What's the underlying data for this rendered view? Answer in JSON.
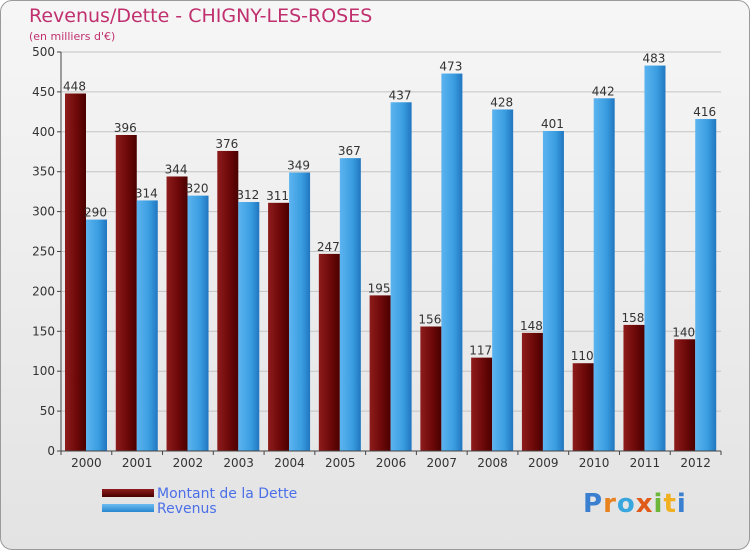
{
  "chart_data": {
    "type": "bar",
    "title": "Revenus/Dette - CHIGNY-LES-ROSES",
    "subtitle": "(en milliers d'€)",
    "xlabel": "",
    "ylabel": "",
    "ylim": [
      0,
      500
    ],
    "yticks": [
      0,
      50,
      100,
      150,
      200,
      250,
      300,
      350,
      400,
      450,
      500
    ],
    "grid": true,
    "legend_position": "bottom-left",
    "categories": [
      "2000",
      "2001",
      "2002",
      "2003",
      "2004",
      "2005",
      "2006",
      "2007",
      "2008",
      "2009",
      "2010",
      "2011",
      "2012"
    ],
    "series": [
      {
        "name": "Montant de la Dette",
        "color": "#7a0a0a",
        "values": [
          448,
          396,
          344,
          376,
          311,
          247,
          195,
          156,
          117,
          148,
          110,
          158,
          140
        ]
      },
      {
        "name": "Revenus",
        "color": "#3a9de0",
        "values": [
          290,
          314,
          320,
          312,
          349,
          367,
          437,
          473,
          428,
          401,
          442,
          483,
          416
        ]
      }
    ]
  },
  "brand": {
    "letters": [
      "P",
      "r",
      "o",
      "x",
      "i",
      "t",
      "i"
    ],
    "colors": [
      "#3a7fd0",
      "#e8821f",
      "#3aa6de",
      "#e05a1a",
      "#6cb63a",
      "#f0b020",
      "#3a7fd0"
    ]
  }
}
